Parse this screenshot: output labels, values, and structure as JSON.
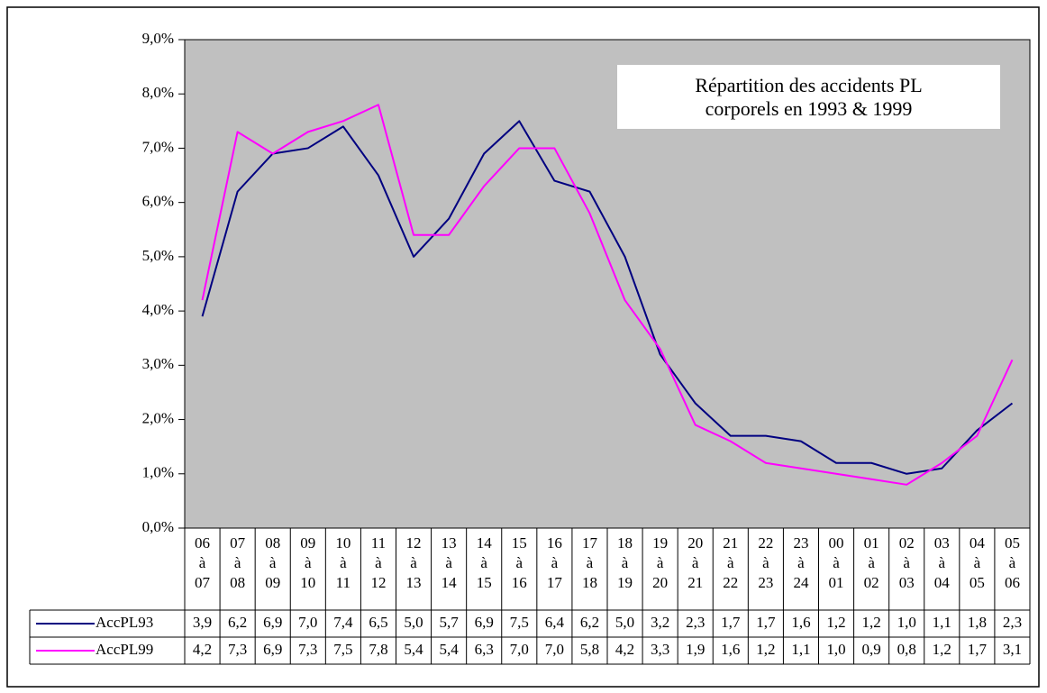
{
  "chart_data": {
    "type": "line",
    "title": "Répartition des accidents PL corporels en 1993 & 1999",
    "categories": [
      "06 à 07",
      "07 à 08",
      "08 à 09",
      "09 à 10",
      "10 à 11",
      "11 à 12",
      "12 à 13",
      "13 à 14",
      "14 à 15",
      "15 à 16",
      "16 à 17",
      "17 à 18",
      "18 à 19",
      "19 à 20",
      "20 à 21",
      "21 à 22",
      "22 à 23",
      "23 à 24",
      "00 à 01",
      "01 à 02",
      "02 à 03",
      "03 à 04",
      "04 à 05",
      "05 à 06"
    ],
    "series": [
      {
        "name": "AccPL93",
        "color": "#000080",
        "values": [
          3.9,
          6.2,
          6.9,
          7.0,
          7.4,
          6.5,
          5.0,
          5.7,
          6.9,
          7.5,
          6.4,
          6.2,
          5.0,
          3.2,
          2.3,
          1.7,
          1.7,
          1.6,
          1.2,
          1.2,
          1.0,
          1.1,
          1.8,
          2.3
        ],
        "value_labels": [
          "3,9",
          "6,2",
          "6,9",
          "7,0",
          "7,4",
          "6,5",
          "5,0",
          "5,7",
          "6,9",
          "7,5",
          "6,4",
          "6,2",
          "5,0",
          "3,2",
          "2,3",
          "1,7",
          "1,7",
          "1,6",
          "1,2",
          "1,2",
          "1,0",
          "1,1",
          "1,8",
          "2,3"
        ]
      },
      {
        "name": "AccPL99",
        "color": "#ff00ff",
        "values": [
          4.2,
          7.3,
          6.9,
          7.3,
          7.5,
          7.8,
          5.4,
          5.4,
          6.3,
          7.0,
          7.0,
          5.8,
          4.2,
          3.3,
          1.9,
          1.6,
          1.2,
          1.1,
          1.0,
          0.9,
          0.8,
          1.2,
          1.7,
          3.1
        ],
        "value_labels": [
          "4,2",
          "7,3",
          "6,9",
          "7,3",
          "7,5",
          "7,8",
          "5,4",
          "5,4",
          "6,3",
          "7,0",
          "7,0",
          "5,8",
          "4,2",
          "3,3",
          "1,9",
          "1,6",
          "1,2",
          "1,1",
          "1,0",
          "0,9",
          "0,8",
          "1,2",
          "1,7",
          "3,1"
        ]
      }
    ],
    "ylim": [
      0,
      9
    ],
    "yticks": [
      {
        "value": 0,
        "label": "0,0%"
      },
      {
        "value": 1,
        "label": "1,0%"
      },
      {
        "value": 2,
        "label": "2,0%"
      },
      {
        "value": 3,
        "label": "3,0%"
      },
      {
        "value": 4,
        "label": "4,0%"
      },
      {
        "value": 5,
        "label": "5,0%"
      },
      {
        "value": 6,
        "label": "6,0%"
      },
      {
        "value": 7,
        "label": "7,0%"
      },
      {
        "value": 8,
        "label": "8,0%"
      },
      {
        "value": 9,
        "label": "9,0%"
      }
    ]
  }
}
